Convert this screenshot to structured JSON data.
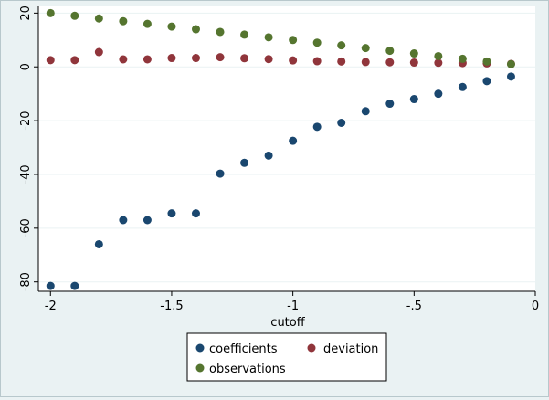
{
  "chart_data": {
    "type": "scatter",
    "title": "",
    "xlabel": "cutoff",
    "ylabel": "",
    "xlim": [
      -2.05,
      0.0
    ],
    "ylim": [
      -83.5,
      22.5
    ],
    "x_ticks": [
      -2,
      -1.5,
      -1,
      -0.5,
      0
    ],
    "x_tick_labels": [
      "-2",
      "-1.5",
      "-1",
      "-.5",
      "0"
    ],
    "y_ticks": [
      -80,
      -60,
      -40,
      -20,
      0,
      20
    ],
    "y_tick_labels": [
      "-80",
      "-60",
      "-40",
      "-20",
      "0",
      "20"
    ],
    "grid": true,
    "legend_position": "bottom",
    "x": [
      -2.0,
      -1.9,
      -1.8,
      -1.7,
      -1.6,
      -1.5,
      -1.4,
      -1.3,
      -1.2,
      -1.1,
      -1.0,
      -0.9,
      -0.8,
      -0.7,
      -0.6,
      -0.5,
      -0.4,
      -0.3,
      -0.2,
      -0.1
    ],
    "series": [
      {
        "name": "coefficients",
        "color": "#1a476f",
        "values": [
          -81.5,
          -81.5,
          -66.0,
          -57.0,
          -57.0,
          -54.5,
          -54.5,
          -39.7,
          -35.7,
          -33.0,
          -27.5,
          -22.3,
          -20.8,
          -16.5,
          -13.7,
          -12.0,
          -10.0,
          -7.5,
          -5.3,
          -3.6
        ]
      },
      {
        "name": "deviation",
        "color": "#90353b",
        "values": [
          2.5,
          2.5,
          5.5,
          2.8,
          2.8,
          3.3,
          3.3,
          3.6,
          3.2,
          2.9,
          2.4,
          2.1,
          2.0,
          1.8,
          1.7,
          1.6,
          1.5,
          1.4,
          1.3,
          1.1
        ]
      },
      {
        "name": "observations",
        "color": "#55752f",
        "values": [
          20.0,
          19.0,
          18.0,
          17.0,
          16.0,
          15.0,
          14.0,
          13.0,
          12.0,
          11.0,
          10.0,
          9.0,
          8.0,
          7.0,
          6.0,
          5.0,
          4.0,
          3.0,
          2.0,
          1.0
        ]
      }
    ]
  }
}
